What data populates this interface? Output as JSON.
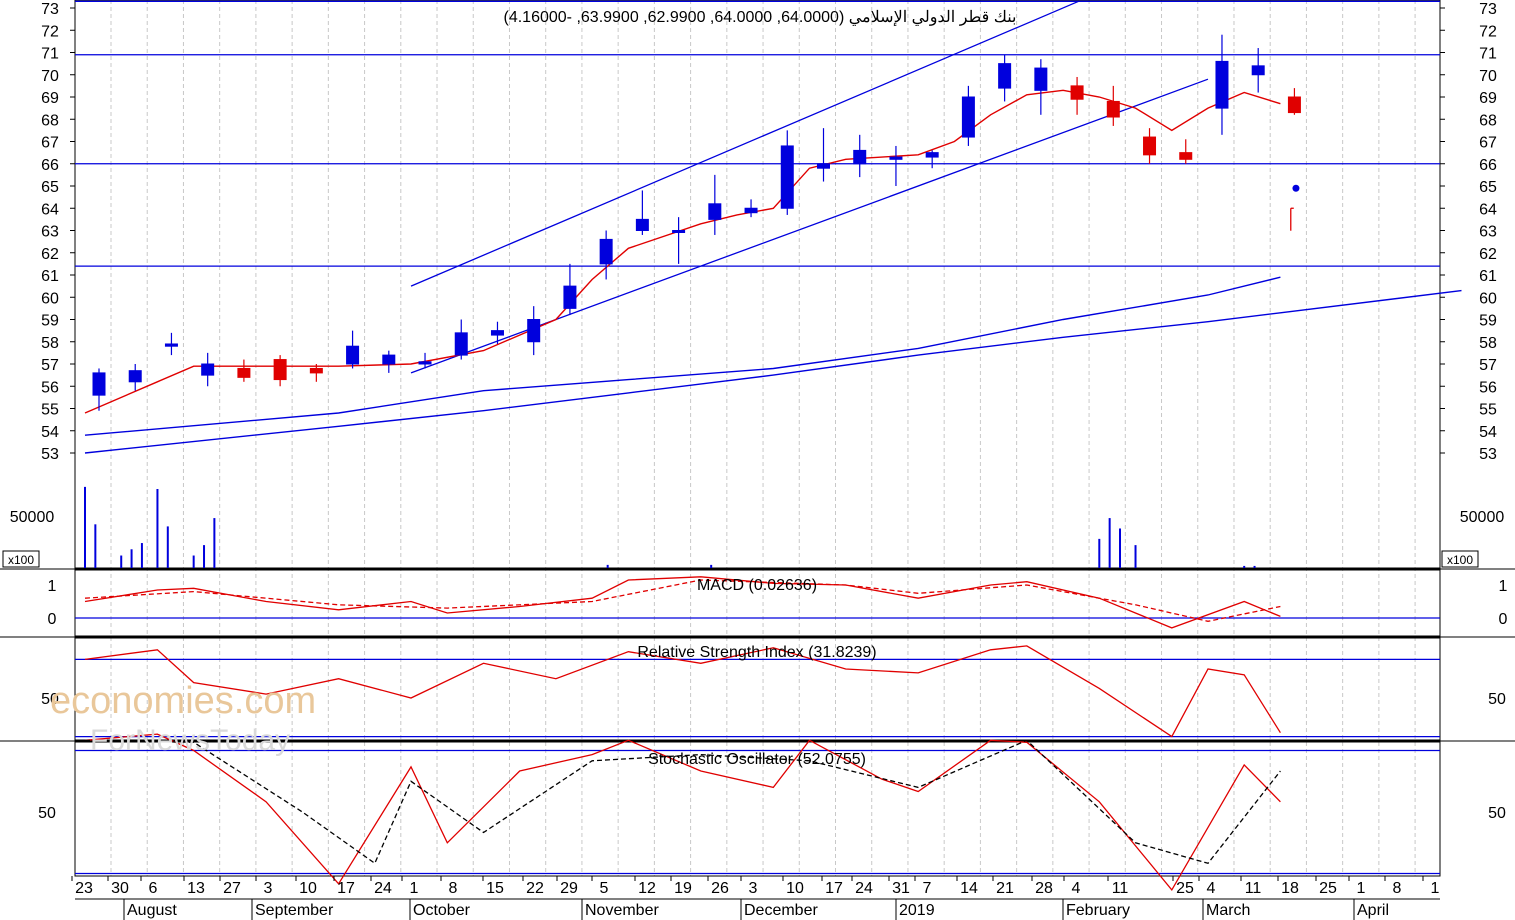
{
  "chart_data": [
    {
      "type": "candlestick",
      "title": "بنك قطر الدولي الإسلامي (64.0000, 64.0000, 62.9900, 63.9900, -4.16000)",
      "ylim": [
        53,
        73
      ],
      "y_ticks": [
        "73",
        "72",
        "71",
        "70",
        "69",
        "68",
        "67",
        "66",
        "65",
        "64",
        "63",
        "62",
        "61",
        "60",
        "59",
        "58",
        "57",
        "56",
        "55",
        "54",
        "53"
      ],
      "x_day_labels": [
        "23",
        "30",
        "6",
        "13",
        "27",
        "3",
        "10",
        "17",
        "24",
        "1",
        "8",
        "15",
        "22",
        "29",
        "5",
        "12",
        "19",
        "26",
        "3",
        "10",
        "17",
        "24",
        "31",
        "7",
        "14",
        "21",
        "28",
        "4",
        "11",
        "25",
        "4",
        "11",
        "18",
        "25",
        "1",
        "8",
        "1"
      ],
      "x_month_labels": [
        "August",
        "September",
        "October",
        "November",
        "December",
        "2019",
        "February",
        "March",
        "April"
      ],
      "horizontal_lines": [
        73.3,
        70.9,
        66.0,
        61.4
      ],
      "channel_upper": {
        "start": [
          "2018-09-24",
          60.5
        ],
        "end": [
          "2019-01-31",
          73.3
        ]
      },
      "channel_lower": {
        "start": [
          "2018-09-24",
          56.6
        ],
        "end": [
          "2019-02-25",
          69.8
        ]
      },
      "moving_average_short": [
        [
          "2018-07-23",
          54.8
        ],
        [
          "2018-08-06",
          56.2
        ],
        [
          "2018-08-13",
          56.9
        ],
        [
          "2018-08-27",
          56.9
        ],
        [
          "2018-09-10",
          56.9
        ],
        [
          "2018-09-24",
          57.0
        ],
        [
          "2018-10-08",
          57.6
        ],
        [
          "2018-10-22",
          59.0
        ],
        [
          "2018-10-29",
          60.8
        ],
        [
          "2018-11-05",
          62.2
        ],
        [
          "2018-11-19",
          63.3
        ],
        [
          "2018-11-26",
          63.7
        ],
        [
          "2018-12-03",
          64.0
        ],
        [
          "2018-12-10",
          65.8
        ],
        [
          "2018-12-17",
          66.2
        ],
        [
          "2018-12-31",
          66.4
        ],
        [
          "2019-01-07",
          67.0
        ],
        [
          "2019-01-14",
          68.2
        ],
        [
          "2019-01-21",
          69.1
        ],
        [
          "2019-01-28",
          69.3
        ],
        [
          "2019-02-04",
          69.0
        ],
        [
          "2019-02-11",
          68.5
        ],
        [
          "2019-02-18",
          67.5
        ],
        [
          "2019-02-25",
          68.5
        ],
        [
          "2019-03-04",
          69.2
        ],
        [
          "2019-03-11",
          68.7
        ]
      ],
      "moving_average_long_1": [
        [
          "2018-07-23",
          53.8
        ],
        [
          "2018-09-10",
          54.8
        ],
        [
          "2018-10-08",
          55.8
        ],
        [
          "2018-11-05",
          56.3
        ],
        [
          "2018-12-03",
          56.8
        ],
        [
          "2018-12-31",
          57.7
        ],
        [
          "2019-01-28",
          59.0
        ],
        [
          "2019-02-25",
          60.1
        ],
        [
          "2019-03-11",
          60.9
        ]
      ],
      "moving_average_long_2": [
        [
          "2018-07-23",
          53.0
        ],
        [
          "2018-09-10",
          54.2
        ],
        [
          "2018-10-08",
          54.9
        ],
        [
          "2018-11-05",
          55.7
        ],
        [
          "2018-12-03",
          56.5
        ],
        [
          "2018-12-31",
          57.4
        ],
        [
          "2019-01-28",
          58.2
        ],
        [
          "2019-02-25",
          58.9
        ],
        [
          "2019-03-11",
          59.3
        ],
        [
          "2019-04-15",
          60.3
        ]
      ],
      "ohlc_weekly": [
        {
          "date": "2018-07-23",
          "open": 55.6,
          "high": 56.8,
          "low": 54.9,
          "close": 56.6,
          "color": "blue"
        },
        {
          "date": "2018-07-30",
          "open": 56.2,
          "high": 57.0,
          "low": 55.8,
          "close": 56.7,
          "color": "blue"
        },
        {
          "date": "2018-08-06",
          "open": 57.8,
          "high": 58.4,
          "low": 57.4,
          "close": 57.9,
          "color": "blue"
        },
        {
          "date": "2018-08-13",
          "open": 57.0,
          "high": 57.5,
          "low": 56.0,
          "close": 56.5,
          "color": "blue"
        },
        {
          "date": "2018-08-20",
          "open": 56.8,
          "high": 57.2,
          "low": 56.2,
          "close": 56.4,
          "color": "red"
        },
        {
          "date": "2018-08-27",
          "open": 57.2,
          "high": 57.4,
          "low": 56.0,
          "close": 56.3,
          "color": "red"
        },
        {
          "date": "2018-09-03",
          "open": 56.6,
          "high": 57.0,
          "low": 56.2,
          "close": 56.8,
          "color": "red"
        },
        {
          "date": "2018-09-10",
          "open": 57.0,
          "high": 58.5,
          "low": 56.8,
          "close": 57.8,
          "color": "blue"
        },
        {
          "date": "2018-09-17",
          "open": 57.0,
          "high": 57.6,
          "low": 56.6,
          "close": 57.4,
          "color": "blue"
        },
        {
          "date": "2018-09-24",
          "open": 57.1,
          "high": 57.5,
          "low": 56.8,
          "close": 57.0,
          "color": "blue"
        },
        {
          "date": "2018-10-01",
          "open": 57.4,
          "high": 59.0,
          "low": 57.2,
          "close": 58.4,
          "color": "blue"
        },
        {
          "date": "2018-10-08",
          "open": 58.5,
          "high": 58.9,
          "low": 57.9,
          "close": 58.3,
          "color": "blue"
        },
        {
          "date": "2018-10-15",
          "open": 58.0,
          "high": 59.6,
          "low": 57.4,
          "close": 59.0,
          "color": "blue"
        },
        {
          "date": "2018-10-22",
          "open": 59.5,
          "high": 61.5,
          "low": 59.2,
          "close": 60.5,
          "color": "blue"
        },
        {
          "date": "2018-10-29",
          "open": 61.5,
          "high": 63.0,
          "low": 60.8,
          "close": 62.6,
          "color": "blue"
        },
        {
          "date": "2018-11-05",
          "open": 63.5,
          "high": 64.8,
          "low": 62.8,
          "close": 63.0,
          "color": "blue"
        },
        {
          "date": "2018-11-12",
          "open": 63.0,
          "high": 63.6,
          "low": 61.5,
          "close": 63.0,
          "color": "blue"
        },
        {
          "date": "2018-11-19",
          "open": 63.5,
          "high": 65.5,
          "low": 62.8,
          "close": 64.2,
          "color": "blue"
        },
        {
          "date": "2018-11-26",
          "open": 64.0,
          "high": 64.4,
          "low": 63.6,
          "close": 63.8,
          "color": "blue"
        },
        {
          "date": "2018-12-03",
          "open": 64.0,
          "high": 67.5,
          "low": 63.7,
          "close": 66.8,
          "color": "blue"
        },
        {
          "date": "2018-12-10",
          "open": 66.0,
          "high": 67.6,
          "low": 65.2,
          "close": 65.8,
          "color": "blue"
        },
        {
          "date": "2018-12-17",
          "open": 66.0,
          "high": 67.3,
          "low": 65.4,
          "close": 66.6,
          "color": "blue"
        },
        {
          "date": "2018-12-24",
          "open": 66.3,
          "high": 66.8,
          "low": 65.0,
          "close": 66.2,
          "color": "blue"
        },
        {
          "date": "2018-12-31",
          "open": 66.3,
          "high": 66.6,
          "low": 65.8,
          "close": 66.5,
          "color": "blue"
        },
        {
          "date": "2019-01-07",
          "open": 67.2,
          "high": 69.5,
          "low": 66.8,
          "close": 69.0,
          "color": "blue"
        },
        {
          "date": "2019-01-14",
          "open": 69.4,
          "high": 70.9,
          "low": 68.8,
          "close": 70.5,
          "color": "blue"
        },
        {
          "date": "2019-01-21",
          "open": 70.3,
          "high": 70.7,
          "low": 68.2,
          "close": 69.3,
          "color": "blue"
        },
        {
          "date": "2019-01-28",
          "open": 69.5,
          "high": 69.9,
          "low": 68.2,
          "close": 68.9,
          "color": "red"
        },
        {
          "date": "2019-02-04",
          "open": 68.8,
          "high": 69.5,
          "low": 67.7,
          "close": 68.1,
          "color": "red"
        },
        {
          "date": "2019-02-11",
          "open": 67.2,
          "high": 67.6,
          "low": 66.0,
          "close": 66.4,
          "color": "red"
        },
        {
          "date": "2019-02-18",
          "open": 66.5,
          "high": 67.1,
          "low": 66.0,
          "close": 66.2,
          "color": "red"
        },
        {
          "date": "2019-02-25",
          "open": 68.5,
          "high": 71.8,
          "low": 67.3,
          "close": 70.6,
          "color": "blue"
        },
        {
          "date": "2019-03-04",
          "open": 70.0,
          "high": 71.2,
          "low": 69.2,
          "close": 70.4,
          "color": "blue"
        },
        {
          "date": "2019-03-11",
          "open": 69.0,
          "high": 69.4,
          "low": 68.2,
          "close": 68.3,
          "color": "red"
        }
      ],
      "markers": [
        {
          "date": "2019-03-14",
          "value": 64.9,
          "color": "blue",
          "shape": "dot"
        },
        {
          "date": "2019-03-13",
          "open": 64.0,
          "high": 64.0,
          "low": 62.99,
          "close": 63.99,
          "color": "red",
          "shape": "small-candle"
        }
      ]
    },
    {
      "type": "bar",
      "title": "",
      "y_tick": "50000",
      "unit_label": "x100",
      "volume_bars": [
        [
          "2018-07-23",
          78000
        ],
        [
          "2018-07-25",
          42000
        ],
        [
          "2018-07-30",
          12000
        ],
        [
          "2018-08-01",
          18000
        ],
        [
          "2018-08-03",
          24000
        ],
        [
          "2018-08-06",
          76000
        ],
        [
          "2018-08-08",
          40000
        ],
        [
          "2018-08-13",
          12000
        ],
        [
          "2018-08-15",
          22000
        ],
        [
          "2018-08-17",
          48000
        ],
        [
          "2018-11-01",
          3000
        ],
        [
          "2018-11-21",
          3000
        ],
        [
          "2019-02-04",
          28000
        ],
        [
          "2019-02-06",
          48000
        ],
        [
          "2019-02-08",
          38000
        ],
        [
          "2019-02-11",
          22000
        ],
        [
          "2019-03-04",
          2000
        ],
        [
          "2019-03-06",
          2000
        ]
      ]
    },
    {
      "type": "line",
      "title": "MACD (0.02636)",
      "y_ticks": [
        "1",
        "0"
      ],
      "ylim": [
        -0.4,
        1.5
      ],
      "series": [
        {
          "style": "solid",
          "color": "red",
          "values": [
            [
              "2018-07-23",
              0.5
            ],
            [
              "2018-08-06",
              0.85
            ],
            [
              "2018-08-13",
              0.9
            ],
            [
              "2018-08-27",
              0.5
            ],
            [
              "2018-09-10",
              0.25
            ],
            [
              "2018-09-24",
              0.5
            ],
            [
              "2018-10-01",
              0.15
            ],
            [
              "2018-10-15",
              0.35
            ],
            [
              "2018-10-29",
              0.6
            ],
            [
              "2018-11-05",
              1.15
            ],
            [
              "2018-11-19",
              1.25
            ],
            [
              "2018-12-03",
              1.05
            ],
            [
              "2018-12-17",
              1.0
            ],
            [
              "2018-12-31",
              0.6
            ],
            [
              "2019-01-14",
              1.0
            ],
            [
              "2019-01-21",
              1.1
            ],
            [
              "2019-02-04",
              0.6
            ],
            [
              "2019-02-18",
              -0.3
            ],
            [
              "2019-03-04",
              0.5
            ],
            [
              "2019-03-11",
              0.05
            ]
          ]
        },
        {
          "style": "dashed",
          "color": "red",
          "values": [
            [
              "2018-07-23",
              0.6
            ],
            [
              "2018-08-13",
              0.8
            ],
            [
              "2018-09-10",
              0.4
            ],
            [
              "2018-10-01",
              0.3
            ],
            [
              "2018-10-29",
              0.5
            ],
            [
              "2018-11-19",
              1.15
            ],
            [
              "2018-12-17",
              1.0
            ],
            [
              "2018-12-31",
              0.75
            ],
            [
              "2019-01-21",
              1.0
            ],
            [
              "2019-02-11",
              0.4
            ],
            [
              "2019-02-25",
              -0.1
            ],
            [
              "2019-03-11",
              0.35
            ]
          ]
        }
      ]
    },
    {
      "type": "line",
      "title": "Relative Strength Index (31.8239)",
      "y_ticks": [
        "50"
      ],
      "ylim": [
        20,
        90
      ],
      "guide_lines": [
        70,
        30
      ],
      "series": [
        {
          "style": "solid",
          "color": "red",
          "values": [
            [
              "2018-07-23",
              70
            ],
            [
              "2018-08-06",
              75
            ],
            [
              "2018-08-13",
              58
            ],
            [
              "2018-08-27",
              52
            ],
            [
              "2018-09-10",
              60
            ],
            [
              "2018-09-24",
              50
            ],
            [
              "2018-10-08",
              68
            ],
            [
              "2018-10-22",
              60
            ],
            [
              "2018-11-05",
              74
            ],
            [
              "2018-11-19",
              68
            ],
            [
              "2018-12-03",
              76
            ],
            [
              "2018-12-17",
              65
            ],
            [
              "2018-12-31",
              63
            ],
            [
              "2019-01-14",
              75
            ],
            [
              "2019-01-21",
              77
            ],
            [
              "2019-02-04",
              55
            ],
            [
              "2019-02-18",
              30
            ],
            [
              "2019-02-25",
              65
            ],
            [
              "2019-03-04",
              62
            ],
            [
              "2019-03-11",
              32
            ]
          ]
        }
      ]
    },
    {
      "type": "line",
      "title": "Stochastic Oscillator (52.0755)",
      "y_ticks": [
        "50"
      ],
      "ylim": [
        0,
        100
      ],
      "guide_lines": [
        80,
        20
      ],
      "series": [
        {
          "style": "solid",
          "color": "red",
          "values": [
            [
              "2018-07-23",
              85
            ],
            [
              "2018-08-06",
              88
            ],
            [
              "2018-08-13",
              80
            ],
            [
              "2018-08-27",
              55
            ],
            [
              "2018-09-10",
              15
            ],
            [
              "2018-09-24",
              72
            ],
            [
              "2018-10-01",
              35
            ],
            [
              "2018-10-15",
              70
            ],
            [
              "2018-10-29",
              78
            ],
            [
              "2018-11-05",
              85
            ],
            [
              "2018-11-19",
              70
            ],
            [
              "2018-12-03",
              62
            ],
            [
              "2018-12-10",
              85
            ],
            [
              "2018-12-24",
              66
            ],
            [
              "2018-12-31",
              60
            ],
            [
              "2019-01-14",
              85
            ],
            [
              "2019-01-21",
              84
            ],
            [
              "2019-02-04",
              55
            ],
            [
              "2019-02-18",
              12
            ],
            [
              "2019-03-04",
              73
            ],
            [
              "2019-03-11",
              55
            ]
          ]
        },
        {
          "style": "dashed",
          "color": "black",
          "values": [
            [
              "2018-07-23",
              85
            ],
            [
              "2018-08-13",
              84
            ],
            [
              "2018-09-03",
              50
            ],
            [
              "2018-09-17",
              25
            ],
            [
              "2018-09-24",
              65
            ],
            [
              "2018-10-08",
              40
            ],
            [
              "2018-10-29",
              75
            ],
            [
              "2018-11-19",
              78
            ],
            [
              "2018-12-10",
              75
            ],
            [
              "2018-12-31",
              62
            ],
            [
              "2019-01-21",
              85
            ],
            [
              "2019-02-11",
              35
            ],
            [
              "2019-02-25",
              25
            ],
            [
              "2019-03-11",
              70
            ]
          ]
        }
      ]
    }
  ],
  "watermark": {
    "line1": "economies.com",
    "line2": "ForNewsToday"
  }
}
